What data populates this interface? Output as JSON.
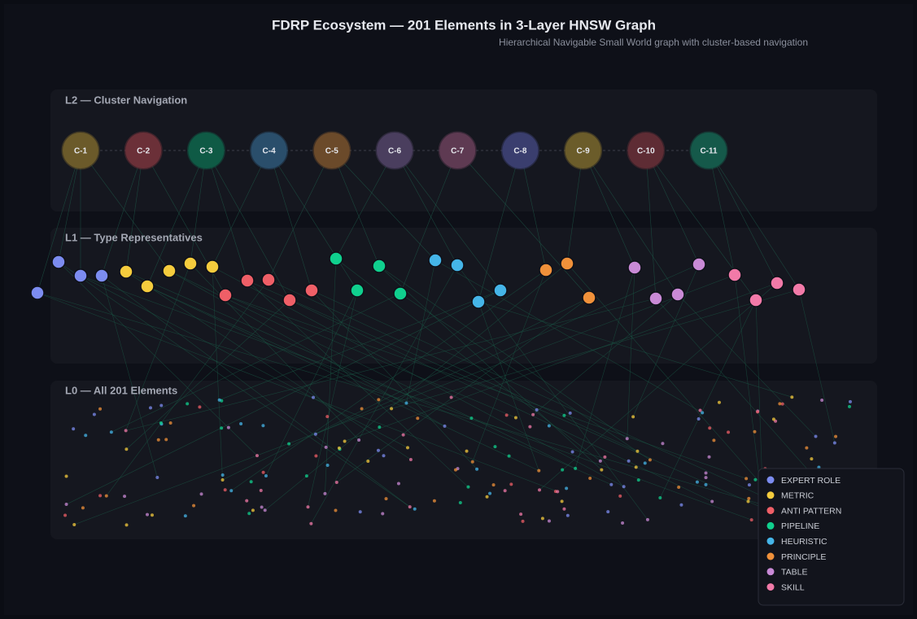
{
  "header": {
    "title": "FDRP Ecosystem — 201 Elements in 3-Layer HNSW Graph",
    "subtitle": "Hierarchical Navigable Small World graph with cluster-based navigation"
  },
  "layers": [
    {
      "label": "L2 — Cluster Navigation"
    },
    {
      "label": "L1 — Type Representatives"
    },
    {
      "label": "L0 — All 201 Elements"
    }
  ],
  "clusters": [
    "C-1",
    "C-2",
    "C-3",
    "C-4",
    "C-5",
    "C-6",
    "C-7",
    "C-8",
    "C-9",
    "C-10",
    "C-11"
  ],
  "legend": [
    {
      "label": "EXPERT ROLE",
      "color": "#7c8cf0"
    },
    {
      "label": "METRIC",
      "color": "#f5cc3d"
    },
    {
      "label": "ANTI PATTERN",
      "color": "#ef5f67"
    },
    {
      "label": "PIPELINE",
      "color": "#10d08e"
    },
    {
      "label": "HEURISTIC",
      "color": "#45b5e8"
    },
    {
      "label": "PRINCIPLE",
      "color": "#f0913a"
    },
    {
      "label": "TABLE",
      "color": "#c98ad6"
    },
    {
      "label": "SKILL",
      "color": "#f27aa8"
    }
  ]
}
